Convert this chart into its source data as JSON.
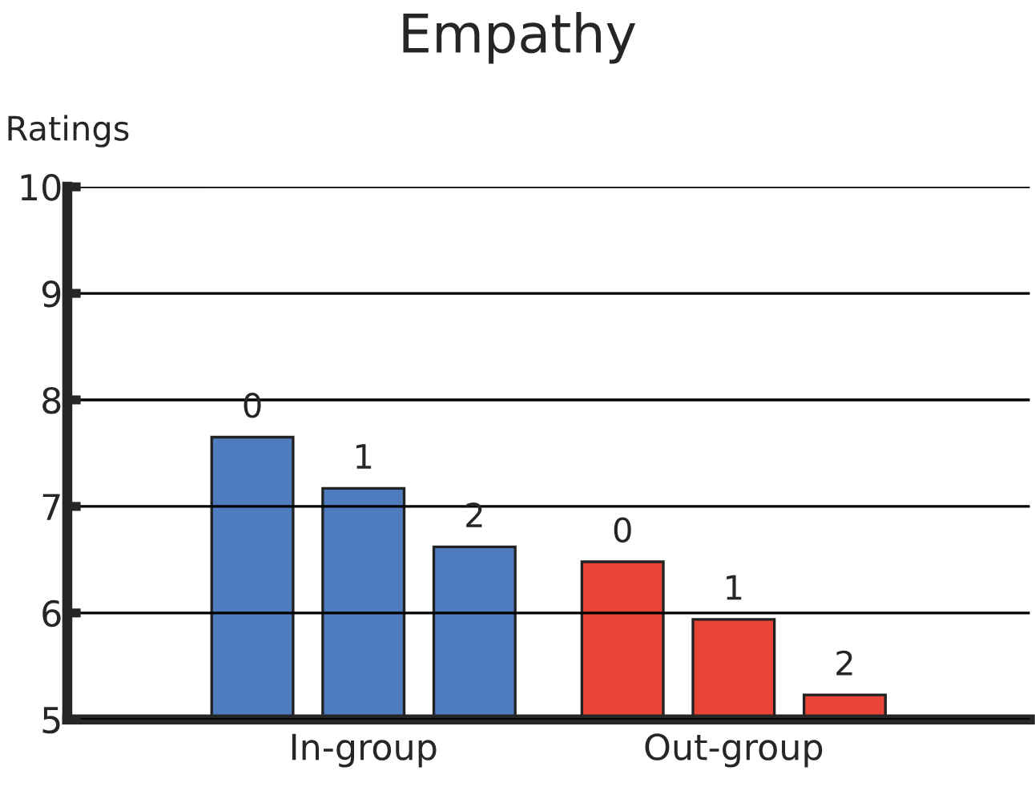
{
  "chart_data": {
    "type": "bar",
    "title": "Empathy",
    "ylabel": "Ratings",
    "categories": [
      "In-group",
      "Out-group"
    ],
    "series": [
      {
        "name": "0",
        "colors": [
          "#4f7bbf",
          "#e84538"
        ],
        "values": [
          7.65,
          6.48
        ]
      },
      {
        "name": "1",
        "colors": [
          "#4f7bbf",
          "#e84538"
        ],
        "values": [
          7.17,
          5.94
        ]
      },
      {
        "name": "2",
        "colors": [
          "#4f7bbf",
          "#e84538"
        ],
        "values": [
          6.62,
          5.23
        ]
      }
    ],
    "ylim": [
      5,
      10
    ],
    "yticks": [
      5,
      6,
      7,
      8,
      9,
      10
    ],
    "grid": "y",
    "legend": false
  }
}
